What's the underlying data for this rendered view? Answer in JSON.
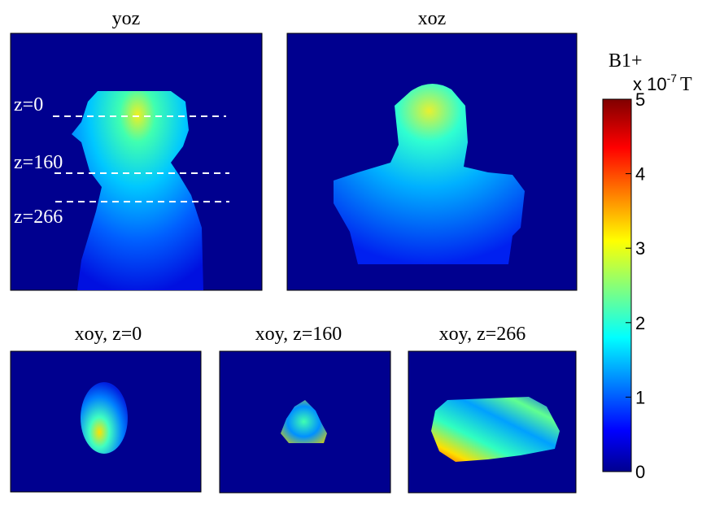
{
  "chart_data": {
    "type": "heatmap",
    "colormap": "jet",
    "colors": {
      "min": "#00008f",
      "low": "#0000ff",
      "mid_low": "#00ffff",
      "mid": "#ffff00",
      "high": "#ff0000",
      "max": "#800000"
    },
    "panels": [
      {
        "title": "yoz",
        "annotations": [
          "z=0",
          "z=160",
          "z=266"
        ]
      },
      {
        "title": "xoz"
      },
      {
        "title": "xoy, z=0"
      },
      {
        "title": "xoy, z=160"
      },
      {
        "title": "xoy, z=266"
      }
    ],
    "colorbar": {
      "label": "B1+",
      "unit": "x 10",
      "exponent": "-7",
      "unit_suffix": "T",
      "range": [
        0,
        5
      ],
      "ticks": [
        "0",
        "1",
        "2",
        "3",
        "4",
        "5"
      ]
    }
  }
}
